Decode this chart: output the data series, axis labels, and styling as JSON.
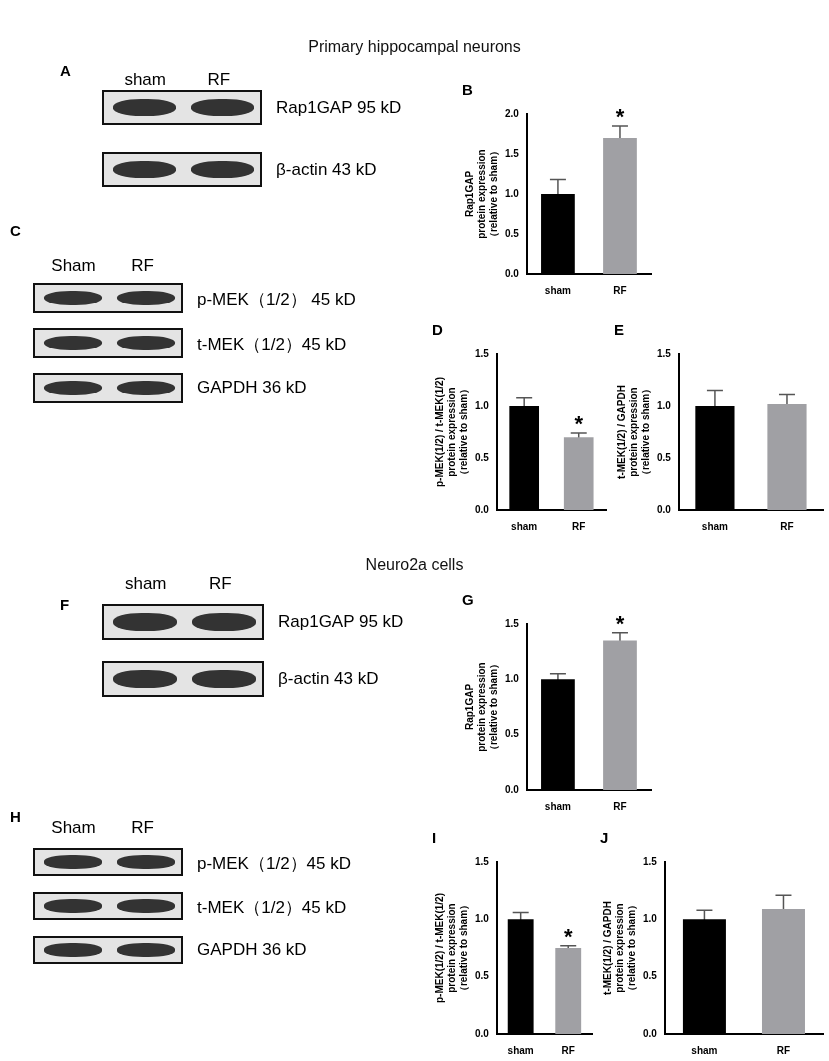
{
  "chart_data": [
    {
      "type": "other",
      "title": "Primary hippocampal neurons"
    },
    {
      "type": "other",
      "title": "A",
      "annotations": [
        "sham",
        "RF",
        "Rap1GAP 95 kD",
        "β-actin 43 kD"
      ]
    },
    {
      "type": "bar",
      "title": "B",
      "categories": [
        "sham",
        "RF"
      ],
      "values": [
        1.0,
        1.7
      ],
      "errors": [
        0.18,
        0.15
      ],
      "colors": [
        "#000000",
        "#a0a0a4"
      ],
      "ylabel": "Rap1GAP\nprotein expression\n（relative to sham）",
      "ylim": [
        0,
        2.0
      ],
      "yticks": [
        {
          "value": 0,
          "label": "0.0"
        },
        {
          "value": 0.5,
          "label": "0.5"
        },
        {
          "value": 1,
          "label": "1.0"
        },
        {
          "value": 1.5,
          "label": "1.5"
        },
        {
          "value": 2,
          "label": "2.0"
        }
      ],
      "annotations": [
        "*"
      ]
    },
    {
      "type": "other",
      "title": "C",
      "annotations": [
        "Sham",
        "RF",
        "p-MEK（1/2） 45 kD",
        "t-MEK（1/2）45 kD",
        "GAPDH 36 kD"
      ]
    },
    {
      "type": "bar",
      "title": "D",
      "categories": [
        "sham",
        "RF"
      ],
      "values": [
        1.0,
        0.7
      ],
      "errors": [
        0.08,
        0.04
      ],
      "colors": [
        "#000000",
        "#a0a0a4"
      ],
      "ylabel": "p-MEK(1/2) / t-MEK(1/2)\nprotein expression\n（relative to sham）",
      "ylim": [
        0,
        1.5
      ],
      "yticks": [
        {
          "value": 0,
          "label": "0.0"
        },
        {
          "value": 0.5,
          "label": "0.5"
        },
        {
          "value": 1,
          "label": "1.0"
        },
        {
          "value": 1.5,
          "label": "1.5"
        }
      ],
      "annotations": [
        "*"
      ]
    },
    {
      "type": "bar",
      "title": "E",
      "categories": [
        "sham",
        "RF"
      ],
      "values": [
        1.0,
        1.02
      ],
      "errors": [
        0.15,
        0.09
      ],
      "colors": [
        "#000000",
        "#a0a0a4"
      ],
      "ylabel": "t-MEK(1/2) / GAPDH\nprotein expression\n（relative to sham）",
      "ylim": [
        0,
        1.5
      ],
      "yticks": [
        {
          "value": 0,
          "label": "0.0"
        },
        {
          "value": 0.5,
          "label": "0.5"
        },
        {
          "value": 1,
          "label": "1.0"
        },
        {
          "value": 1.5,
          "label": "1.5"
        }
      ]
    },
    {
      "type": "other",
      "title": "Neuro2a cells"
    },
    {
      "type": "other",
      "title": "F",
      "annotations": [
        "sham",
        "RF",
        "Rap1GAP 95 kD",
        "β-actin 43 kD"
      ]
    },
    {
      "type": "bar",
      "title": "G",
      "categories": [
        "sham",
        "RF"
      ],
      "values": [
        1.0,
        1.35
      ],
      "errors": [
        0.05,
        0.07
      ],
      "colors": [
        "#000000",
        "#a0a0a4"
      ],
      "ylabel": "Rap1GAP\nprotein expression\n（relative to sham）",
      "ylim": [
        0,
        1.5
      ],
      "yticks": [
        {
          "value": 0,
          "label": "0.0"
        },
        {
          "value": 0.5,
          "label": "0.5"
        },
        {
          "value": 1,
          "label": "1.0"
        },
        {
          "value": 1.5,
          "label": "1.5"
        }
      ],
      "annotations": [
        "*"
      ]
    },
    {
      "type": "other",
      "title": "H",
      "annotations": [
        "Sham",
        "RF",
        "p-MEK（1/2）45 kD",
        "t-MEK（1/2）45 kD",
        "GAPDH 36 kD"
      ]
    },
    {
      "type": "bar",
      "title": "I",
      "categories": [
        "sham",
        "RF"
      ],
      "values": [
        1.0,
        0.75
      ],
      "errors": [
        0.06,
        0.02
      ],
      "colors": [
        "#000000",
        "#a0a0a4"
      ],
      "ylabel": "p-MEK(1/2) / t-MEK(1/2)\nprotein expression\n（relative to sham）",
      "ylim": [
        0,
        1.5
      ],
      "yticks": [
        {
          "value": 0,
          "label": "0.0"
        },
        {
          "value": 0.5,
          "label": "0.5"
        },
        {
          "value": 1,
          "label": "1.0"
        },
        {
          "value": 1.5,
          "label": "1.5"
        }
      ],
      "annotations": [
        "*"
      ]
    },
    {
      "type": "bar",
      "title": "J",
      "categories": [
        "sham",
        "RF"
      ],
      "values": [
        1.0,
        1.09
      ],
      "errors": [
        0.08,
        0.12
      ],
      "colors": [
        "#000000",
        "#a0a0a4"
      ],
      "ylabel": "t-MEK(1/2) / GAPDH\nprotein expression\n（relative to sham）",
      "ylim": [
        0,
        1.5
      ],
      "yticks": [
        {
          "value": 0,
          "label": "0.0"
        },
        {
          "value": 0.5,
          "label": "0.5"
        },
        {
          "value": 1,
          "label": "1.0"
        },
        {
          "value": 1.5,
          "label": "1.5"
        }
      ]
    }
  ]
}
